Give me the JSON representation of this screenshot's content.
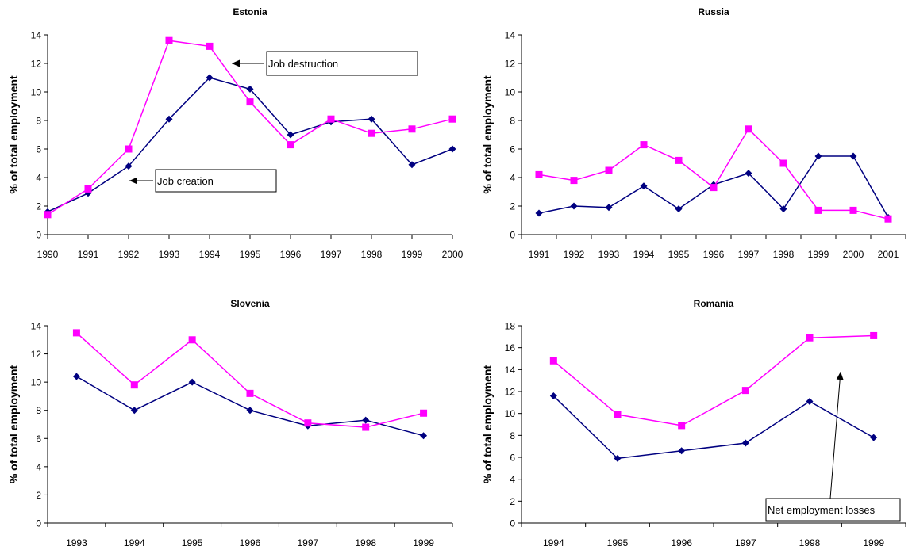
{
  "colors": {
    "job_creation": "#000080",
    "job_destruction": "#ff00ff",
    "axis": "#000000"
  },
  "chart_data": [
    {
      "type": "line",
      "title": "Estonia",
      "ylabel": "% of total employment",
      "xlabel": "",
      "categories": [
        "1990",
        "1991",
        "1992",
        "1993",
        "1994",
        "1995",
        "1996",
        "1997",
        "1998",
        "1999",
        "2000"
      ],
      "ylim": [
        0,
        14
      ],
      "yticks": [
        0,
        2,
        4,
        6,
        8,
        10,
        12,
        14
      ],
      "series": [
        {
          "key": "job_creation",
          "marker": "diamond",
          "values": [
            1.6,
            2.9,
            4.8,
            8.1,
            11.0,
            10.2,
            7.0,
            7.9,
            8.1,
            4.9,
            6.0
          ]
        },
        {
          "key": "job_destruction",
          "marker": "square",
          "values": [
            1.4,
            3.2,
            6.0,
            13.6,
            13.2,
            9.3,
            6.3,
            8.1,
            7.1,
            7.4,
            8.1
          ]
        }
      ],
      "annotations": [
        {
          "text": "Job destruction",
          "arrow_to": [
            "1994",
            13.2
          ]
        },
        {
          "text": "Job creation",
          "arrow_to": [
            "1992",
            4.0
          ]
        }
      ]
    },
    {
      "type": "line",
      "title": "Russia",
      "ylabel": "% of total employment",
      "xlabel": "",
      "categories": [
        "1991",
        "1992",
        "1993",
        "1994",
        "1995",
        "1996",
        "1997",
        "1998",
        "1999",
        "2000",
        "2001"
      ],
      "ylim": [
        0,
        14
      ],
      "yticks": [
        0,
        2,
        4,
        6,
        8,
        10,
        12,
        14
      ],
      "series": [
        {
          "key": "job_creation",
          "marker": "diamond",
          "values": [
            1.5,
            2.0,
            1.9,
            3.4,
            1.8,
            3.5,
            4.3,
            1.8,
            5.5,
            5.5,
            1.2
          ]
        },
        {
          "key": "job_destruction",
          "marker": "square",
          "values": [
            4.2,
            3.8,
            4.5,
            6.3,
            5.2,
            3.3,
            7.4,
            5.0,
            1.7,
            1.7,
            1.1
          ]
        }
      ],
      "annotations": []
    },
    {
      "type": "line",
      "title": "Slovenia",
      "ylabel": "% of total employment",
      "xlabel": "",
      "categories": [
        "1993",
        "1994",
        "1995",
        "1996",
        "1997",
        "1998",
        "1999"
      ],
      "ylim": [
        0,
        14
      ],
      "yticks": [
        0,
        2,
        4,
        6,
        8,
        10,
        12,
        14
      ],
      "series": [
        {
          "key": "job_creation",
          "marker": "diamond",
          "values": [
            10.4,
            8.0,
            10.0,
            8.0,
            6.9,
            7.3,
            6.2
          ]
        },
        {
          "key": "job_destruction",
          "marker": "square",
          "values": [
            13.5,
            9.8,
            13.0,
            9.2,
            7.1,
            6.8,
            7.8
          ]
        }
      ],
      "annotations": []
    },
    {
      "type": "line",
      "title": "Romania",
      "ylabel": "% of total employment",
      "xlabel": "",
      "categories": [
        "1994",
        "1995",
        "1996",
        "1997",
        "1998",
        "1999"
      ],
      "ylim": [
        0,
        18
      ],
      "yticks": [
        0,
        2,
        4,
        6,
        8,
        10,
        12,
        14,
        16,
        18
      ],
      "series": [
        {
          "key": "job_creation",
          "marker": "diamond",
          "values": [
            11.6,
            5.9,
            6.6,
            7.3,
            11.1,
            7.8
          ]
        },
        {
          "key": "job_destruction",
          "marker": "square",
          "values": [
            14.8,
            9.9,
            8.9,
            12.1,
            16.9,
            17.1
          ]
        }
      ],
      "annotations": [
        {
          "text": "Net employment losses",
          "arrow_to": [
            "1998",
            14.0
          ]
        }
      ]
    }
  ]
}
